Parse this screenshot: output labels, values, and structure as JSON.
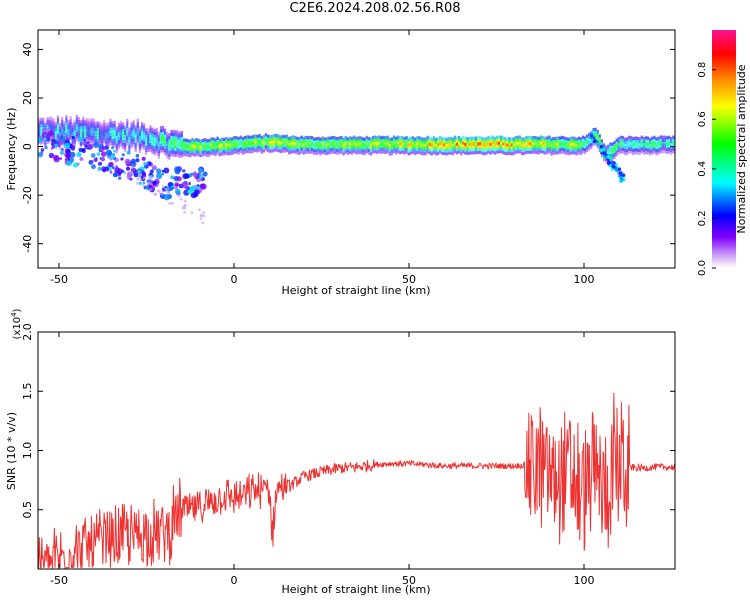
{
  "title": "C2E6.2024.208.02.56.R08",
  "chart_data": [
    {
      "type": "heatmap",
      "title": "",
      "xlabel": "Height of straight line (km)",
      "ylabel": "Frequency (Hz)",
      "xlim": [
        -56,
        126
      ],
      "ylim": [
        -50,
        48
      ],
      "xticks": [
        -50,
        0,
        50,
        100
      ],
      "yticks": [
        -40,
        -20,
        0,
        20,
        40
      ],
      "colorbar": {
        "label": "Normalized spectral amplitude",
        "range": [
          0,
          0.96
        ],
        "ticks": [
          0.0,
          0.2,
          0.4,
          0.6,
          0.8
        ],
        "colormap": [
          "#e8d0f8",
          "#8000ff",
          "#0000ff",
          "#00ffff",
          "#00ff00",
          "#ffff00",
          "#ff8000",
          "#ff0000",
          "#ff1493"
        ]
      },
      "ridge": {
        "description_points_km": [
          -55,
          -45,
          -35,
          -25,
          -18,
          -12,
          0,
          10,
          20,
          40,
          60,
          80,
          95,
          100,
          103,
          106,
          110,
          126
        ],
        "frequency_hz": [
          6,
          6,
          5,
          4,
          1,
          0,
          1,
          2,
          1,
          1,
          1,
          1,
          1,
          1,
          5,
          -3,
          1,
          1
        ],
        "amplitude": [
          0.3,
          0.35,
          0.35,
          0.3,
          0.45,
          0.6,
          0.55,
          0.6,
          0.55,
          0.6,
          0.75,
          0.75,
          0.6,
          0.5,
          0.5,
          0.4,
          0.45,
          0.4
        ]
      },
      "scatter_branch": {
        "x_km": [
          -55,
          -45,
          -35,
          -28,
          -24,
          -20
        ],
        "frequency_hz": [
          2,
          -2,
          -6,
          -9,
          -12,
          -15
        ]
      }
    },
    {
      "type": "line",
      "title": "",
      "xlabel": "Height of straight line (km)",
      "ylabel": "SNR (10 * v/v)",
      "yscale_label": "(x10",
      "yscale_exp": "4",
      "xlim": [
        -56,
        126
      ],
      "ylim": [
        0,
        2.0
      ],
      "xticks": [
        -50,
        0,
        50,
        100
      ],
      "yticks": [
        0.5,
        1.0,
        1.5,
        2.0
      ],
      "ytick_labels": [
        "0.5",
        "1.0",
        "1.5",
        "2.0"
      ],
      "series": [
        {
          "color": "#ee3333",
          "x": [
            -56,
            -50,
            -45,
            -40,
            -35,
            -30,
            -25,
            -20,
            -17,
            -15,
            -12,
            -8,
            -5,
            -2,
            0,
            3,
            6,
            8,
            10,
            11,
            12,
            14,
            16,
            20,
            25,
            30,
            35,
            40,
            45,
            50,
            55,
            60,
            70,
            80,
            85,
            88,
            92,
            96,
            98,
            100,
            102,
            104,
            106,
            108,
            110,
            113,
            116,
            120,
            126
          ],
          "y": [
            0.02,
            0.08,
            0.15,
            0.2,
            0.25,
            0.28,
            0.3,
            0.3,
            0.4,
            0.5,
            0.5,
            0.55,
            0.6,
            0.62,
            0.6,
            0.62,
            0.66,
            0.65,
            0.7,
            0.3,
            0.65,
            0.72,
            0.7,
            0.78,
            0.82,
            0.85,
            0.86,
            0.88,
            0.89,
            0.89,
            0.88,
            0.87,
            0.87,
            0.87,
            0.88,
            0.85,
            0.75,
            0.8,
            0.7,
            0.65,
            0.75,
            0.8,
            0.6,
            0.85,
            0.9,
            0.86,
            0.85,
            0.86,
            0.86
          ]
        }
      ]
    }
  ]
}
